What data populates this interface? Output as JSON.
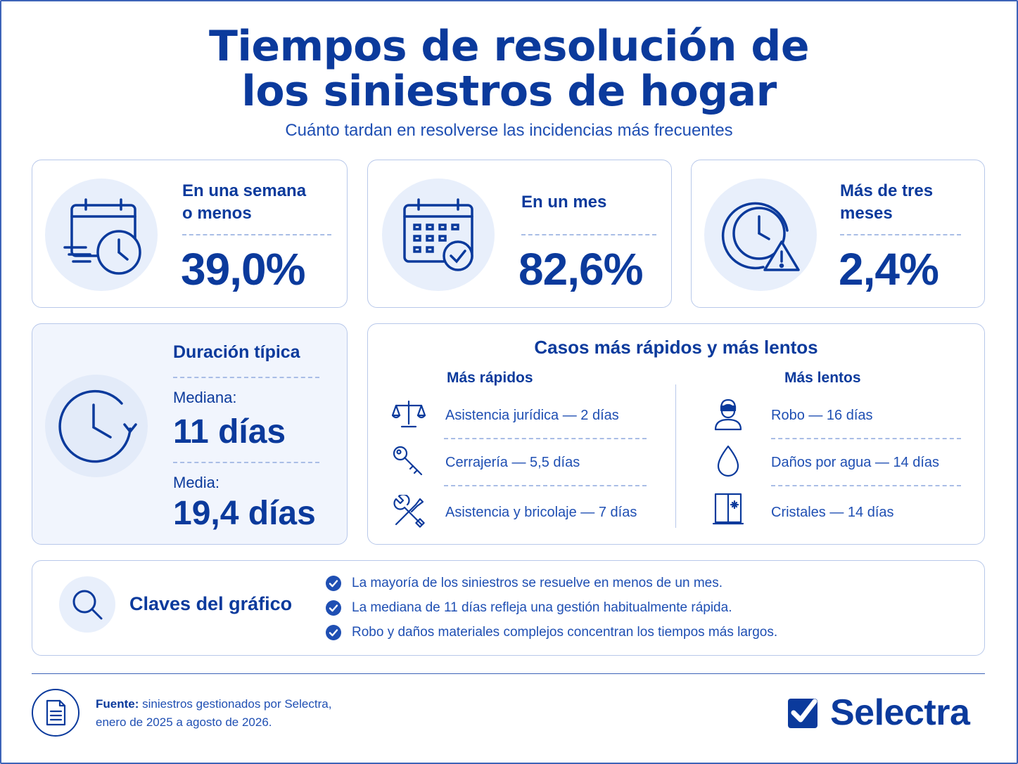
{
  "header": {
    "title_line1": "Tiempos de resolución de",
    "title_line2": "los siniestros de hogar",
    "subtitle": "Cuánto tardan en resolverse las incidencias más frecuentes"
  },
  "stats": [
    {
      "label_line1": "En una semana",
      "label_line2": "o menos",
      "value": "39,0%",
      "icon": "calendar-clock-icon"
    },
    {
      "label_line1": "En un mes",
      "label_line2": "",
      "value": "82,6%",
      "icon": "calendar-check-icon"
    },
    {
      "label_line1": "Más de tres",
      "label_line2": "meses",
      "value": "2,4%",
      "icon": "clock-warning-icon"
    }
  ],
  "duration": {
    "title": "Duración típica",
    "median_label": "Mediana:",
    "median_value": "11 días",
    "mean_label": "Media:",
    "mean_value": "19,4 días",
    "icon": "clock-refresh-icon"
  },
  "cases": {
    "title": "Casos más rápidos y más lentos",
    "fast_title": "Más rápidos",
    "slow_title": "Más lentos",
    "fast": [
      {
        "text": "Asistencia jurídica — 2 días",
        "icon": "scales-icon"
      },
      {
        "text": "Cerrajería — 5,5 días",
        "icon": "key-icon"
      },
      {
        "text": "Asistencia y bricolaje — 7 días",
        "icon": "tools-icon"
      }
    ],
    "slow": [
      {
        "text": "Robo — 16 días",
        "icon": "burglar-icon"
      },
      {
        "text": "Daños por agua — 14 días",
        "icon": "water-drop-icon"
      },
      {
        "text": "Cristales — 14 días",
        "icon": "broken-window-icon"
      }
    ]
  },
  "keys": {
    "title": "Claves del gráfico",
    "items": [
      "La mayoría de los siniestros se resuelve en menos de un mes.",
      "La mediana de 11 días refleja una gestión habitualmente rápida.",
      "Robo y daños materiales complejos concentran los tiempos más largos."
    ]
  },
  "footer": {
    "source_label": "Fuente:",
    "source_text": " siniestros gestionados por Selectra,",
    "source_line2": "enero de 2025 a agosto de 2026.",
    "brand": "Selectra"
  },
  "colors": {
    "primary": "#0b3a9c",
    "accent": "#1f4fb3",
    "icon_bg": "#e8effb",
    "border": "#b8c8ea"
  }
}
